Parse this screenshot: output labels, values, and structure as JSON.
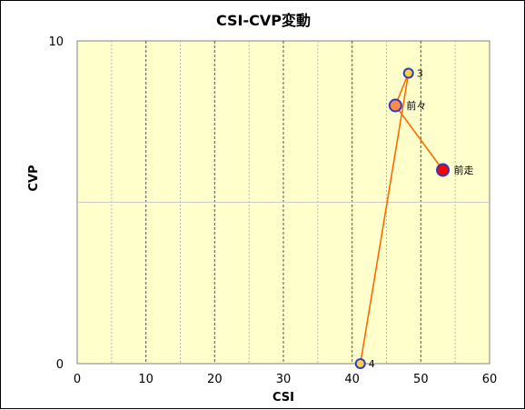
{
  "chart_data": {
    "type": "scatter",
    "title": "CSI-CVP変動",
    "xlabel": "CSI",
    "ylabel": "CVP",
    "xlim": [
      0,
      60
    ],
    "ylim": [
      0,
      10
    ],
    "x_ticks": [
      0,
      10,
      20,
      30,
      40,
      50,
      60
    ],
    "y_tick_labels": [
      "0",
      "10"
    ],
    "grid": "vertical dashed every 5, horizontal at 5",
    "series_color": "#ff6a00",
    "points": [
      {
        "label": "4",
        "x": 41.2,
        "y": 0.0,
        "fill": "#ffd23c"
      },
      {
        "label": "3",
        "x": 48.2,
        "y": 9.0,
        "fill": "#ffd23c"
      },
      {
        "label": "前々",
        "x": 46.3,
        "y": 8.0,
        "fill": "#ff8a4a"
      },
      {
        "label": "前走",
        "x": 53.2,
        "y": 6.0,
        "fill": "#ff0000"
      }
    ]
  }
}
